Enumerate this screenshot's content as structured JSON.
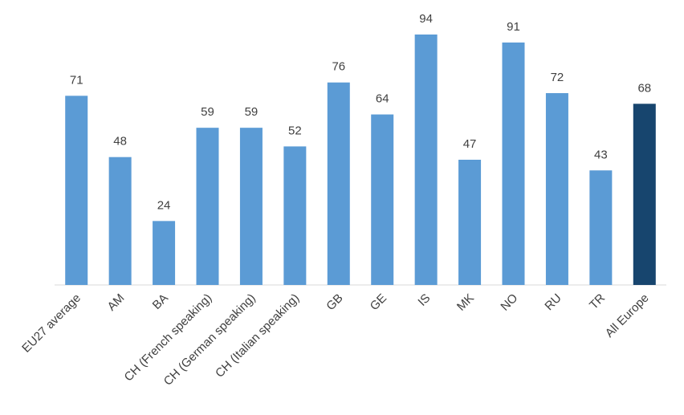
{
  "chart_data": {
    "type": "bar",
    "categories": [
      "EU27 average",
      "AM",
      "BA",
      "CH (French speaking)",
      "CH (German speaking)",
      "CH (Italian speaking)",
      "GB",
      "GE",
      "IS",
      "MK",
      "NO",
      "RU",
      "TR",
      "All Europe"
    ],
    "values": [
      71,
      48,
      24,
      59,
      59,
      52,
      76,
      64,
      94,
      47,
      91,
      72,
      43,
      68
    ],
    "colors": [
      "#5b9bd5",
      "#5b9bd5",
      "#5b9bd5",
      "#5b9bd5",
      "#5b9bd5",
      "#5b9bd5",
      "#5b9bd5",
      "#5b9bd5",
      "#5b9bd5",
      "#5b9bd5",
      "#5b9bd5",
      "#5b9bd5",
      "#5b9bd5",
      "#17456e"
    ]
  }
}
